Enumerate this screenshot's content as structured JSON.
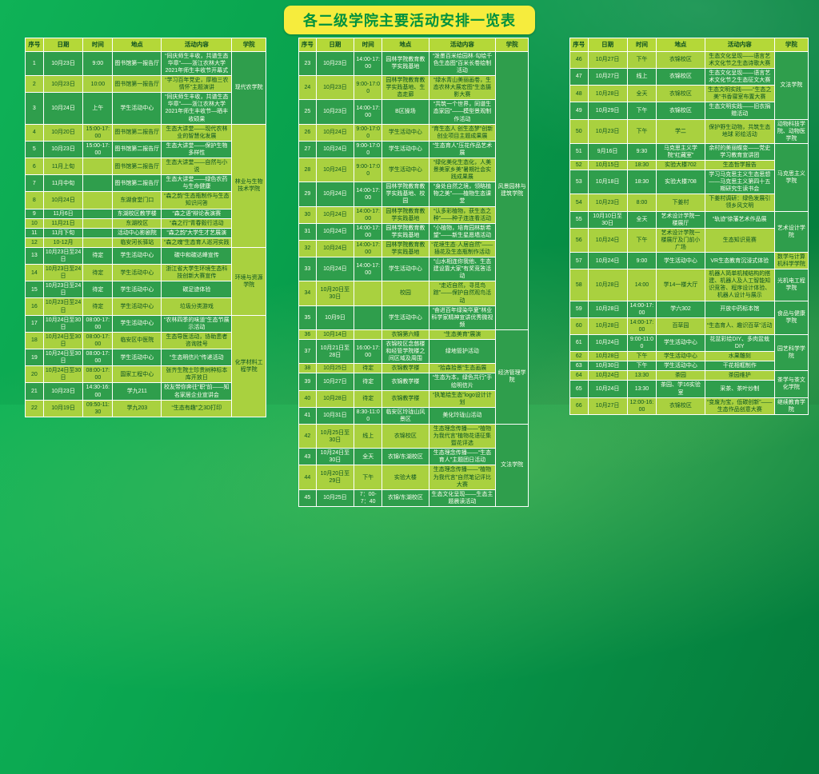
{
  "title": "各二级学院主要活动安排一览表",
  "columns": {
    "no": "序号",
    "date": "日期",
    "time": "时间",
    "place": "地点",
    "activity": "活动内容",
    "college": "学院"
  },
  "colors": {
    "page_green": "#08a14d",
    "title_bg": "#f6ec3d",
    "title_text": "#00913f",
    "header_bg": "#b4d838",
    "header_text": "#0b4f22",
    "row_dark_bg": "#2f9e4c",
    "row_dark_text": "#fdfef0",
    "row_light_bg": "#a9d13f",
    "row_light_text": "#0a5424",
    "border": "#ffffff"
  },
  "tables": [
    {
      "rows": [
        {
          "no": "1",
          "date": "10月23日",
          "time": "9:00",
          "place": "图书馆第一报告厅",
          "activity": "“同庆师生丰收，共谱生态华章”——浙江农林大学2021年师生丰收节开幕式",
          "college": {
            "name": "现代农学院",
            "span": 3,
            "light": false
          }
        },
        {
          "no": "2",
          "date": "10月23日",
          "time": "10:00",
          "place": "图书馆第一报告厅",
          "activity": "“学习百年党史，厚植三农情怀”主题演讲"
        },
        {
          "no": "3",
          "date": "10月24日",
          "time": "上午",
          "place": "学生活动中心",
          "activity": "“同庆师生丰收，共谱生态华章”——浙江农林大学2021年师生丰收节—晒丰收硕果"
        },
        {
          "no": "4",
          "date": "10月20日",
          "time": "15:00-17:00",
          "place": "图书馆第二报告厅",
          "activity": "生态大讲堂——现代农林业的智慧化发展",
          "college": {
            "name": "林业与生物技术学院",
            "span": 9,
            "light": true
          }
        },
        {
          "no": "5",
          "date": "10月23日",
          "time": "15:00-17:00",
          "place": "图书馆第二报告厅",
          "activity": "生态大讲堂——保护生物多样性"
        },
        {
          "no": "6",
          "date": "11月上旬",
          "time": "",
          "place": "图书馆第二报告厅",
          "activity": "生态大讲堂——自然与小说"
        },
        {
          "no": "7",
          "date": "11月中旬",
          "time": "",
          "place": "图书馆第二报告厅",
          "activity": "生态大讲堂——绿色农药与生命健康"
        },
        {
          "no": "8",
          "date": "10月24日",
          "time": "",
          "place": "东湖食堂门口",
          "activity": "“森之韵”生态瓶制作与生态知识问答"
        },
        {
          "no": "9",
          "date": "11月6日",
          "time": "",
          "place": "东湖校区教学楼",
          "activity": "“森之语”辩论表演赛"
        },
        {
          "no": "10",
          "date": "11月21日",
          "time": "",
          "place": "东湖校区",
          "activity": "“森之行”青春毅行活动"
        },
        {
          "no": "11",
          "date": "11月下旬",
          "time": "",
          "place": "活动中心影剧院",
          "activity": "“森之韵”大学生才艺展演"
        },
        {
          "no": "12",
          "date": "10-12月",
          "time": "",
          "place": "临安河长驿站",
          "activity": "“森之魂”生态育人巡河实践"
        },
        {
          "no": "13",
          "date": "10月23日至24日",
          "time": "待定",
          "place": "学生活动中心",
          "activity": "碳中和碳达峰宣传",
          "college": {
            "name": "环境与资源学院",
            "span": 4,
            "light": true
          }
        },
        {
          "no": "14",
          "date": "10月23日至24日",
          "time": "待定",
          "place": "学生活动中心",
          "activity": "浙江省大学生环境生态科技创新大赛宣传"
        },
        {
          "no": "15",
          "date": "10月23日至24日",
          "time": "待定",
          "place": "学生活动中心",
          "activity": "碳足迹体验"
        },
        {
          "no": "16",
          "date": "10月23日至24日",
          "time": "待定",
          "place": "学生活动中心",
          "activity": "垃圾分类游戏"
        },
        {
          "no": "17",
          "date": "10月24日至30日",
          "time": "08:00-17:00",
          "place": "学生活动中心",
          "activity": "“农林四季的味道”生态节展示活动",
          "college": {
            "name": "化学材料工程学院",
            "span": 6,
            "light": true
          }
        },
        {
          "no": "18",
          "date": "10月24日至30日",
          "time": "08:00-17:00",
          "place": "临安区中医院",
          "activity": "生态导医活动，协助患者咨询挂号"
        },
        {
          "no": "19",
          "date": "10月24日至30日",
          "time": "08:00-17:00",
          "place": "学生活动中心",
          "activity": "“生态明信片”传递活动"
        },
        {
          "no": "20",
          "date": "10月24日至30日",
          "time": "08:00-17:00",
          "place": "国家工程中心",
          "activity": "张齐生院士珍贵树种标本库开放日"
        },
        {
          "no": "21",
          "date": "10月23日",
          "time": "14:30-16:00",
          "place": "学九211",
          "activity": "校友带你奔往“职”前——知名家居企业宣讲会"
        },
        {
          "no": "22",
          "date": "10月19日",
          "time": "09:50-11:30",
          "place": "学九203",
          "activity": "“生态有趣”之3D打印"
        }
      ]
    },
    {
      "rows": [
        {
          "no": "23",
          "date": "10月23日",
          "time": "14:00-17:00",
          "place": "园林学院教育教学实践基地",
          "activity": "“泼墨百米绘园林·勾绘千色生态图”百米长卷绘制活动",
          "college": {
            "name": "风景园林与建筑学院",
            "span": 13,
            "light": false
          }
        },
        {
          "no": "24",
          "date": "10月23日",
          "time": "9:00-17:00",
          "place": "园林学院教育教学实践基地、生态走廊",
          "activity": "“绿水青山美丽画卷，生态农林大展宏图”生态摄影大赛"
        },
        {
          "no": "25",
          "date": "10月23日",
          "time": "14:00-17:00",
          "place": "B区操场",
          "activity": "“共筑一个世界，同谱生态家园”——模型景观制作活动"
        },
        {
          "no": "26",
          "date": "10月24日",
          "time": "9:00-17:00",
          "place": "学生活动中心",
          "activity": "“育生态人 创生态梦”创新创业项目主题成果展"
        },
        {
          "no": "27",
          "date": "10月24日",
          "time": "9:00-17:00",
          "place": "学生活动中心",
          "activity": "“生态育人”压花作品艺术展"
        },
        {
          "no": "28",
          "date": "10月24日",
          "time": "9:00-17:00",
          "place": "学生活动中心",
          "activity": "“绿化美化生态化，人美景美家乡美”暑期社会实践成果展"
        },
        {
          "no": "29",
          "date": "10月24日",
          "time": "14:00-17:00",
          "place": "园林学院教育教学实践基地、校园",
          "activity": "“身处自然之境，领略植物之美”——植物生态课堂"
        },
        {
          "no": "30",
          "date": "10月24日",
          "time": "14:00-17:00",
          "place": "园林学院教育教学实践基地",
          "activity": "“认多彩植物，获生态之种”——种子连连看活动"
        },
        {
          "no": "31",
          "date": "10月24日",
          "time": "14:00-17:00",
          "place": "园林学院教育教学实践基地",
          "activity": "“小植物，培育园林新希望”——新生星愿墙活动"
        },
        {
          "no": "32",
          "date": "10月24日",
          "time": "14:00-17:00",
          "place": "园林学院教育教学实践基地",
          "activity": "“花境生态·人居自然”——插花及生态瓶制作活动"
        },
        {
          "no": "33",
          "date": "10月24日",
          "time": "14:00-17:00",
          "place": "学生活动中心",
          "activity": "“山水相连你我他、生态建设靠大家”有奖竞答活动"
        },
        {
          "no": "34",
          "date": "10月20日至30日",
          "time": "",
          "place": "校园",
          "activity": "“走近自然，寻觅鸟踪”——保护自然观鸟活动"
        },
        {
          "no": "35",
          "date": "10月9日",
          "time": "",
          "place": "学生活动中心",
          "activity": "“奋进百年绿染华夏”林业科学家精神宣讲优秀微视频"
        },
        {
          "no": "36",
          "date": "10月14日",
          "time": "",
          "place": "衣锦第六幢",
          "activity": "“生态美育”展演",
          "college": {
            "name": "经济管理学院",
            "span": 6,
            "light": false
          }
        },
        {
          "no": "37",
          "date": "10月21日至28日",
          "time": "16:00-17:00",
          "place": "衣锦校区念慈楼和经管学院楼之间区域及周围",
          "activity": "绿地管护活动"
        },
        {
          "no": "38",
          "date": "10月25日",
          "time": "待定",
          "place": "衣锦教学楼",
          "activity": "“拾森拾景”生态画展"
        },
        {
          "no": "39",
          "date": "10月27日",
          "time": "待定",
          "place": "衣锦教学楼",
          "activity": "“生态为本，绿色共行”手绘明信片"
        },
        {
          "no": "40",
          "date": "10月28日",
          "time": "待定",
          "place": "衣锦教学楼",
          "activity": "“执笔绘生态”logo设计计划"
        },
        {
          "no": "41",
          "date": "10月31日",
          "time": "8:30-11:00",
          "place": "临安区玲珑山风景区",
          "activity": "美化玲珑山活动"
        },
        {
          "no": "42",
          "date": "10月25日至30日",
          "time": "线上",
          "place": "衣锦校区",
          "activity": "生态理念传播——“植物为我代言”植物花语征集暨花评选",
          "college": {
            "name": "文法学院",
            "span": 4,
            "light": false
          }
        },
        {
          "no": "43",
          "date": "10月24日至30日",
          "time": "全天",
          "place": "衣锦/东湖校区",
          "activity": "生态理念传播——“生态育人”主题团日活动"
        },
        {
          "no": "44",
          "date": "10月20日至29日",
          "time": "下午",
          "place": "实验大楼",
          "activity": "生态理念传播——“植物为我代言”自然笔记评比大赛"
        },
        {
          "no": "45",
          "date": "10月25日",
          "time": "7：00-7：40",
          "place": "衣锦/东湖校区",
          "activity": "生态文化呈现——生态主题晨读活动"
        }
      ]
    },
    {
      "rows": [
        {
          "no": "46",
          "date": "10月27日",
          "time": "下午",
          "place": "衣锦校区",
          "activity": "生态文化呈现——语言艺术文化节之生态诗歌大赛",
          "college": {
            "name": "文法学院",
            "span": 4,
            "light": false
          }
        },
        {
          "no": "47",
          "date": "10月27日",
          "time": "线上",
          "place": "衣锦校区",
          "activity": "生态文化呈现——语言艺术文化节之生态征文大赛"
        },
        {
          "no": "48",
          "date": "10月28日",
          "time": "全天",
          "place": "衣锦校区",
          "activity": "生态文明实践——“生态之美”书香寝室布置大赛"
        },
        {
          "no": "49",
          "date": "10月29日",
          "time": "下午",
          "place": "衣锦校区",
          "activity": "生态文明实践——旧衣捐赠活动"
        },
        {
          "no": "50",
          "date": "10月23日",
          "time": "下午",
          "place": "学二",
          "activity": "保护野生动物，共筑生态地球 彩绘活动",
          "college": {
            "name": "动物科技学院、动物医学院",
            "span": 1,
            "light": false
          }
        },
        {
          "no": "51",
          "date": "9月16日",
          "time": "9:30",
          "place": "马克思主义学院“红藏室”",
          "activity": "余村的美丽蝶变——党史学习教育宣讲团",
          "college": {
            "name": "马克思主义学院",
            "span": 4,
            "light": false
          }
        },
        {
          "no": "52",
          "date": "10月15日",
          "time": "18:30",
          "place": "实验大楼702",
          "activity": "生态哲学报告"
        },
        {
          "no": "53",
          "date": "10月18日",
          "time": "18:30",
          "place": "实验大楼708",
          "activity": "学习马克思主义生态思想——马克思主义第四十五期研究生读书会"
        },
        {
          "no": "54",
          "date": "10月23日",
          "time": "8:00",
          "place": "下姜村",
          "activity": "下姜村调研：绿色发展引领乡风文明"
        },
        {
          "no": "55",
          "date": "10月10日至30日",
          "time": "全天",
          "place": "艺术设计学院一楼展厅",
          "activity": "“轨迹”徐藩艺术作品展",
          "college": {
            "name": "艺术设计学院",
            "span": 2,
            "light": false
          }
        },
        {
          "no": "56",
          "date": "10月24日",
          "time": "下午",
          "place": "艺术设计学院一楼展厅及门前小广场",
          "activity": "生态知识竞赛"
        },
        {
          "no": "57",
          "date": "10月24日",
          "time": "9:00",
          "place": "学生活动中心",
          "activity": "VR生态教育沉浸式体验",
          "college": {
            "name": "数学与计算机科学学院",
            "span": 1,
            "light": true
          }
        },
        {
          "no": "58",
          "date": "10月28日",
          "time": "14:00",
          "place": "学14一楼大厅",
          "activity": "机器人简单机械结构的搭建、机器人及人工智能知识竞答、程序设计体验、机器人设计与展示",
          "college": {
            "name": "光机电工程学院",
            "span": 1,
            "light": false
          }
        },
        {
          "no": "59",
          "date": "10月28日",
          "time": "14:00-17:00",
          "place": "学六302",
          "activity": "开放中药标本馆",
          "college": {
            "name": "食品与健康学院",
            "span": 2,
            "light": false
          }
        },
        {
          "no": "60",
          "date": "10月28日",
          "time": "14:00-17:00",
          "place": "百草园",
          "activity": "“生态育人、趣识百草”活动"
        },
        {
          "no": "61",
          "date": "10月24日",
          "time": "9:00-11:00",
          "place": "学生活动中心",
          "activity": "花盆彩绘DIY、多肉盆栽DIY",
          "college": {
            "name": "园艺科学学院",
            "span": 3,
            "light": false
          }
        },
        {
          "no": "62",
          "date": "10月28日",
          "time": "下午",
          "place": "学生活动中心",
          "activity": "水果雕刻"
        },
        {
          "no": "63",
          "date": "10月30日",
          "time": "下午",
          "place": "学生活动中心",
          "activity": "干花相框制作"
        },
        {
          "no": "64",
          "date": "10月24日",
          "time": "13:30",
          "place": "茶园",
          "activity": "茶园维护",
          "college": {
            "name": "茶学与茶文化学院",
            "span": 2,
            "light": false
          }
        },
        {
          "no": "65",
          "date": "10月24日",
          "time": "13:30",
          "place": "茶园、学16实验室",
          "activity": "采茶、茶叶炒制"
        },
        {
          "no": "66",
          "date": "10月27日",
          "time": "12:00-16:00",
          "place": "衣锦校区",
          "activity": "“变废为宝，低碳创新”——生态作品创意大赛",
          "college": {
            "name": "继续教育学院",
            "span": 1,
            "light": false
          }
        }
      ]
    }
  ]
}
